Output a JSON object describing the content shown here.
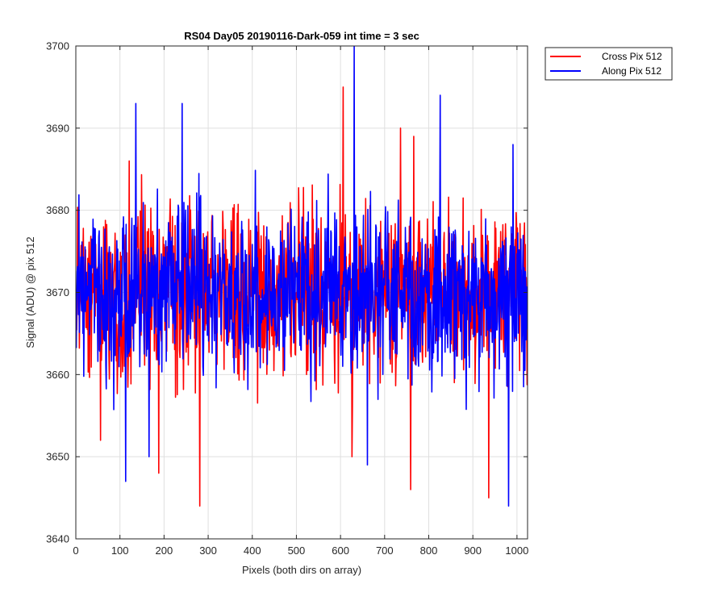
{
  "chart_data": {
    "type": "line",
    "title": "RS04 Day05 20190116-Dark-059 int time = 3 sec",
    "xlabel": "Pixels (both dirs on array)",
    "ylabel": "Signal (ADU) @ pix 512",
    "xlim": [
      0,
      1024
    ],
    "ylim": [
      3640,
      3700
    ],
    "xticks": [
      0,
      100,
      200,
      300,
      400,
      500,
      600,
      700,
      800,
      900,
      1000
    ],
    "yticks": [
      3640,
      3650,
      3660,
      3670,
      3680,
      3690,
      3700
    ],
    "grid": true,
    "legend_position": "outside-top-right",
    "n_points": 1024,
    "series": [
      {
        "name": "Cross Pix 512",
        "color": "#ff0000",
        "mean": 3670,
        "spread": 5,
        "features": [
          {
            "x": 55,
            "y": 3652
          },
          {
            "x": 120,
            "y": 3686
          },
          {
            "x": 187,
            "y": 3648
          },
          {
            "x": 280,
            "y": 3644
          },
          {
            "x": 605,
            "y": 3695
          },
          {
            "x": 625,
            "y": 3650
          },
          {
            "x": 735,
            "y": 3690
          },
          {
            "x": 758,
            "y": 3646
          },
          {
            "x": 765,
            "y": 3689
          },
          {
            "x": 935,
            "y": 3645
          }
        ]
      },
      {
        "name": "Along Pix 512",
        "color": "#0000ff",
        "mean": 3670,
        "spread": 5,
        "features": [
          {
            "x": 112,
            "y": 3647
          },
          {
            "x": 135,
            "y": 3693
          },
          {
            "x": 165,
            "y": 3650
          },
          {
            "x": 240,
            "y": 3693
          },
          {
            "x": 630,
            "y": 3700
          },
          {
            "x": 660,
            "y": 3649
          },
          {
            "x": 825,
            "y": 3694
          },
          {
            "x": 980,
            "y": 3644
          },
          {
            "x": 990,
            "y": 3688
          }
        ]
      }
    ]
  }
}
